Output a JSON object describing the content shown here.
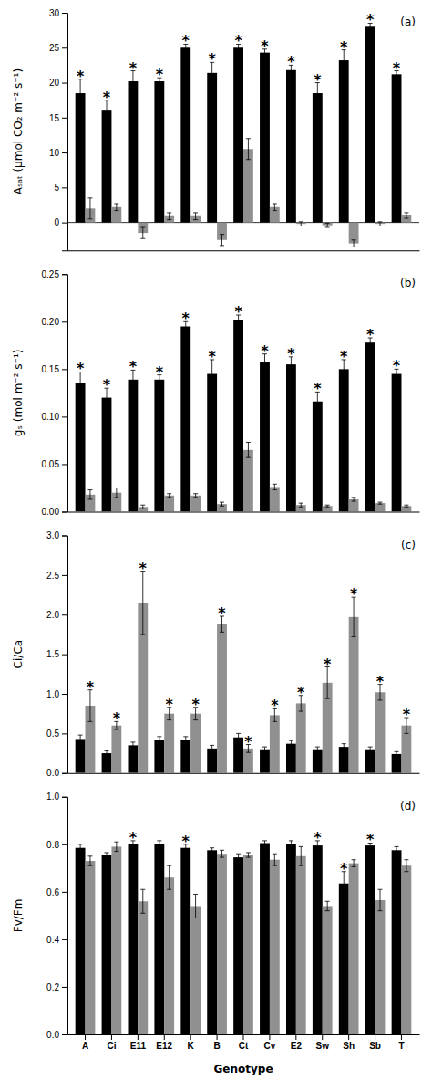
{
  "chart_data": [
    {
      "type": "bar",
      "title": "(a)",
      "ylabel": "Aₛₐₜ (μmol CO₂ m⁻² s⁻¹)",
      "categories": [
        "A",
        "Ci",
        "E11",
        "E12",
        "K",
        "B",
        "Ct",
        "Cv",
        "E2",
        "Sw",
        "Sh",
        "Sb",
        "T"
      ],
      "series": [
        {
          "color": "#000000",
          "values": [
            18.5,
            16.0,
            20.2,
            20.2,
            25.0,
            21.4,
            25.0,
            24.3,
            21.8,
            18.5,
            23.2,
            28.0,
            21.2
          ],
          "errors": [
            2.0,
            1.5,
            1.5,
            0.5,
            0.5,
            1.5,
            0.5,
            0.5,
            0.7,
            1.5,
            1.5,
            0.5,
            0.5
          ],
          "significance": [
            true,
            true,
            true,
            true,
            true,
            true,
            true,
            true,
            true,
            true,
            true,
            true,
            true
          ]
        },
        {
          "color": "#909090",
          "values": [
            2.0,
            2.2,
            -1.5,
            0.9,
            0.9,
            -2.5,
            10.5,
            2.2,
            -0.2,
            -0.4,
            -3.0,
            -0.2,
            1.0
          ],
          "errors": [
            1.5,
            0.5,
            0.8,
            0.5,
            0.5,
            0.8,
            1.5,
            0.5,
            0.3,
            0.3,
            0.5,
            0.3,
            0.4
          ],
          "significance": [
            false,
            false,
            false,
            false,
            false,
            false,
            false,
            false,
            false,
            false,
            false,
            false,
            false
          ]
        }
      ],
      "significance_label": "*",
      "ylim": [
        -4,
        30
      ],
      "yticks": [
        0,
        5,
        10,
        15,
        20,
        25,
        30
      ],
      "grid": false,
      "tick_labels": "y"
    },
    {
      "type": "bar",
      "title": "(b)",
      "ylabel": "gₛ (mol m⁻² s⁻¹)",
      "categories": [
        "A",
        "Ci",
        "E11",
        "E12",
        "K",
        "B",
        "Ct",
        "Cv",
        "E2",
        "Sw",
        "Sh",
        "Sb",
        "T"
      ],
      "series": [
        {
          "color": "#000000",
          "values": [
            0.135,
            0.12,
            0.139,
            0.139,
            0.195,
            0.145,
            0.202,
            0.158,
            0.155,
            0.116,
            0.15,
            0.178,
            0.145
          ],
          "errors": [
            0.012,
            0.01,
            0.01,
            0.005,
            0.005,
            0.015,
            0.005,
            0.008,
            0.008,
            0.01,
            0.01,
            0.005,
            0.005
          ],
          "significance": [
            true,
            true,
            true,
            true,
            true,
            true,
            true,
            true,
            true,
            true,
            true,
            true,
            true
          ]
        },
        {
          "color": "#909090",
          "values": [
            0.018,
            0.02,
            0.005,
            0.017,
            0.017,
            0.008,
            0.065,
            0.026,
            0.007,
            0.006,
            0.013,
            0.009,
            0.006
          ],
          "errors": [
            0.005,
            0.005,
            0.002,
            0.002,
            0.002,
            0.002,
            0.008,
            0.003,
            0.002,
            0.001,
            0.002,
            0.001,
            0.001
          ],
          "significance": [
            false,
            false,
            false,
            false,
            false,
            false,
            false,
            false,
            false,
            false,
            false,
            false,
            false
          ]
        }
      ],
      "significance_label": "*",
      "ylim": [
        0,
        0.25
      ],
      "yticks": [
        {
          "value": 0,
          "label": "0.00"
        },
        0.05,
        {
          "value": 0.1,
          "label": "0.10"
        },
        0.15,
        {
          "value": 0.2,
          "label": "0.20"
        },
        0.25
      ],
      "grid": false,
      "tick_labels": "y"
    },
    {
      "type": "bar",
      "title": "(c)",
      "ylabel": "Ci/Ca",
      "categories": [
        "A",
        "Ci",
        "E11",
        "E12",
        "K",
        "B",
        "Ct",
        "Cv",
        "E2",
        "Sw",
        "Sh",
        "Sb",
        "T"
      ],
      "series": [
        {
          "color": "#000000",
          "values": [
            0.43,
            0.25,
            0.35,
            0.42,
            0.42,
            0.31,
            0.45,
            0.3,
            0.37,
            0.3,
            0.33,
            0.3,
            0.24
          ],
          "errors": [
            0.05,
            0.03,
            0.04,
            0.04,
            0.04,
            0.04,
            0.05,
            0.03,
            0.04,
            0.03,
            0.04,
            0.03,
            0.03
          ],
          "significance": [
            false,
            false,
            false,
            false,
            false,
            false,
            false,
            false,
            false,
            false,
            false,
            false,
            false
          ]
        },
        {
          "color": "#909090",
          "values": [
            0.85,
            0.6,
            2.15,
            0.75,
            0.75,
            1.88,
            0.31,
            0.73,
            0.88,
            1.14,
            1.97,
            1.02,
            0.6
          ],
          "errors": [
            0.2,
            0.05,
            0.4,
            0.08,
            0.08,
            0.1,
            0.05,
            0.08,
            0.1,
            0.2,
            0.25,
            0.1,
            0.1
          ],
          "significance": [
            true,
            true,
            true,
            true,
            true,
            true,
            true,
            true,
            true,
            true,
            true,
            true,
            true
          ]
        }
      ],
      "significance_label": "*",
      "ylim": [
        0,
        3.0
      ],
      "yticks": [
        {
          "value": 0,
          "label": "0.0"
        },
        0.5,
        {
          "value": 1,
          "label": "1.0"
        },
        1.5,
        {
          "value": 2,
          "label": "2.0"
        },
        2.5,
        {
          "value": 3,
          "label": "3.0"
        }
      ],
      "grid": false,
      "tick_labels": "y"
    },
    {
      "type": "bar",
      "title": "(d)",
      "ylabel": "Fv/Fm",
      "xlabel": "Genotype",
      "categories": [
        "A",
        "Ci",
        "E11",
        "E12",
        "K",
        "B",
        "Ct",
        "Cv",
        "E2",
        "Sw",
        "Sh",
        "Sb",
        "T"
      ],
      "series": [
        {
          "color": "#000000",
          "values": [
            0.785,
            0.755,
            0.8,
            0.8,
            0.785,
            0.775,
            0.745,
            0.805,
            0.8,
            0.795,
            0.635,
            0.795,
            0.775
          ],
          "errors": [
            0.015,
            0.01,
            0.015,
            0.015,
            0.015,
            0.01,
            0.015,
            0.01,
            0.015,
            0.02,
            0.05,
            0.01,
            0.015
          ],
          "significance": [
            false,
            false,
            true,
            false,
            true,
            false,
            false,
            false,
            false,
            true,
            true,
            true,
            false
          ]
        },
        {
          "color": "#909090",
          "values": [
            0.73,
            0.79,
            0.56,
            0.66,
            0.54,
            0.76,
            0.755,
            0.735,
            0.75,
            0.54,
            0.72,
            0.565,
            0.71
          ],
          "errors": [
            0.02,
            0.02,
            0.05,
            0.05,
            0.05,
            0.015,
            0.01,
            0.025,
            0.04,
            0.02,
            0.015,
            0.045,
            0.025
          ],
          "significance": [
            false,
            false,
            false,
            false,
            false,
            false,
            false,
            false,
            false,
            false,
            false,
            false,
            false
          ]
        }
      ],
      "significance_label": "*",
      "ylim": [
        0,
        1.0
      ],
      "yticks": [
        {
          "value": 0,
          "label": "0.0"
        },
        0.2,
        0.4,
        0.6,
        0.8,
        {
          "value": 1,
          "label": "1.0"
        }
      ],
      "grid": false
    }
  ]
}
